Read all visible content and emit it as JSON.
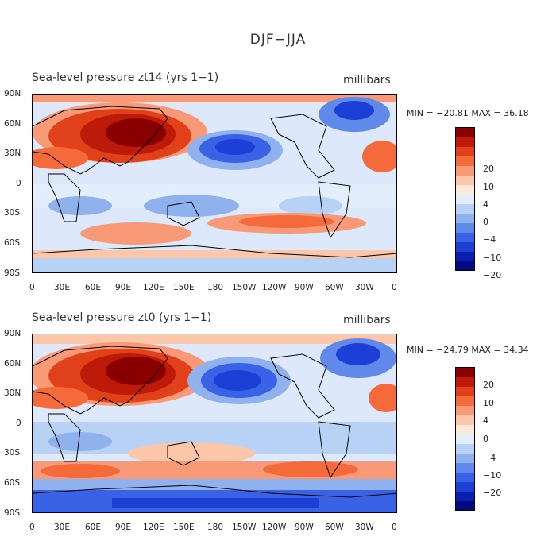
{
  "figure_title": "DJF−JJA",
  "panels": [
    {
      "title": "Sea-level pressure   zt14 (yrs 1−1)",
      "units": "millibars",
      "stats": "MIN = −20.81 MAX =  36.18",
      "colorbar_labels": [
        "20",
        "10",
        "4",
        "0",
        "−4",
        "−10",
        "−20"
      ]
    },
    {
      "title": "Sea-level pressure   zt0 (yrs 1−1)",
      "units": "millibars",
      "stats": "MIN = −24.79 MAX =  34.34",
      "colorbar_labels": [
        "20",
        "10",
        "4",
        "0",
        "−4",
        "−10",
        "−20"
      ]
    }
  ],
  "lat_labels": [
    "90N",
    "60N",
    "30N",
    "0",
    "30S",
    "60S",
    "90S"
  ],
  "lon_labels": [
    "0",
    "30E",
    "60E",
    "90E",
    "120E",
    "150E",
    "180",
    "150W",
    "120W",
    "90W",
    "60W",
    "30W",
    "0"
  ],
  "palette": [
    "#8a0000",
    "#bd1a0a",
    "#e0401a",
    "#f56a3a",
    "#f89a78",
    "#fcc6a8",
    "#fde9da",
    "#e2eefc",
    "#b8d2f5",
    "#8fb1ee",
    "#6189ea",
    "#3a62e6",
    "#1c3fd6",
    "#0a1fb0",
    "#020a80"
  ]
}
